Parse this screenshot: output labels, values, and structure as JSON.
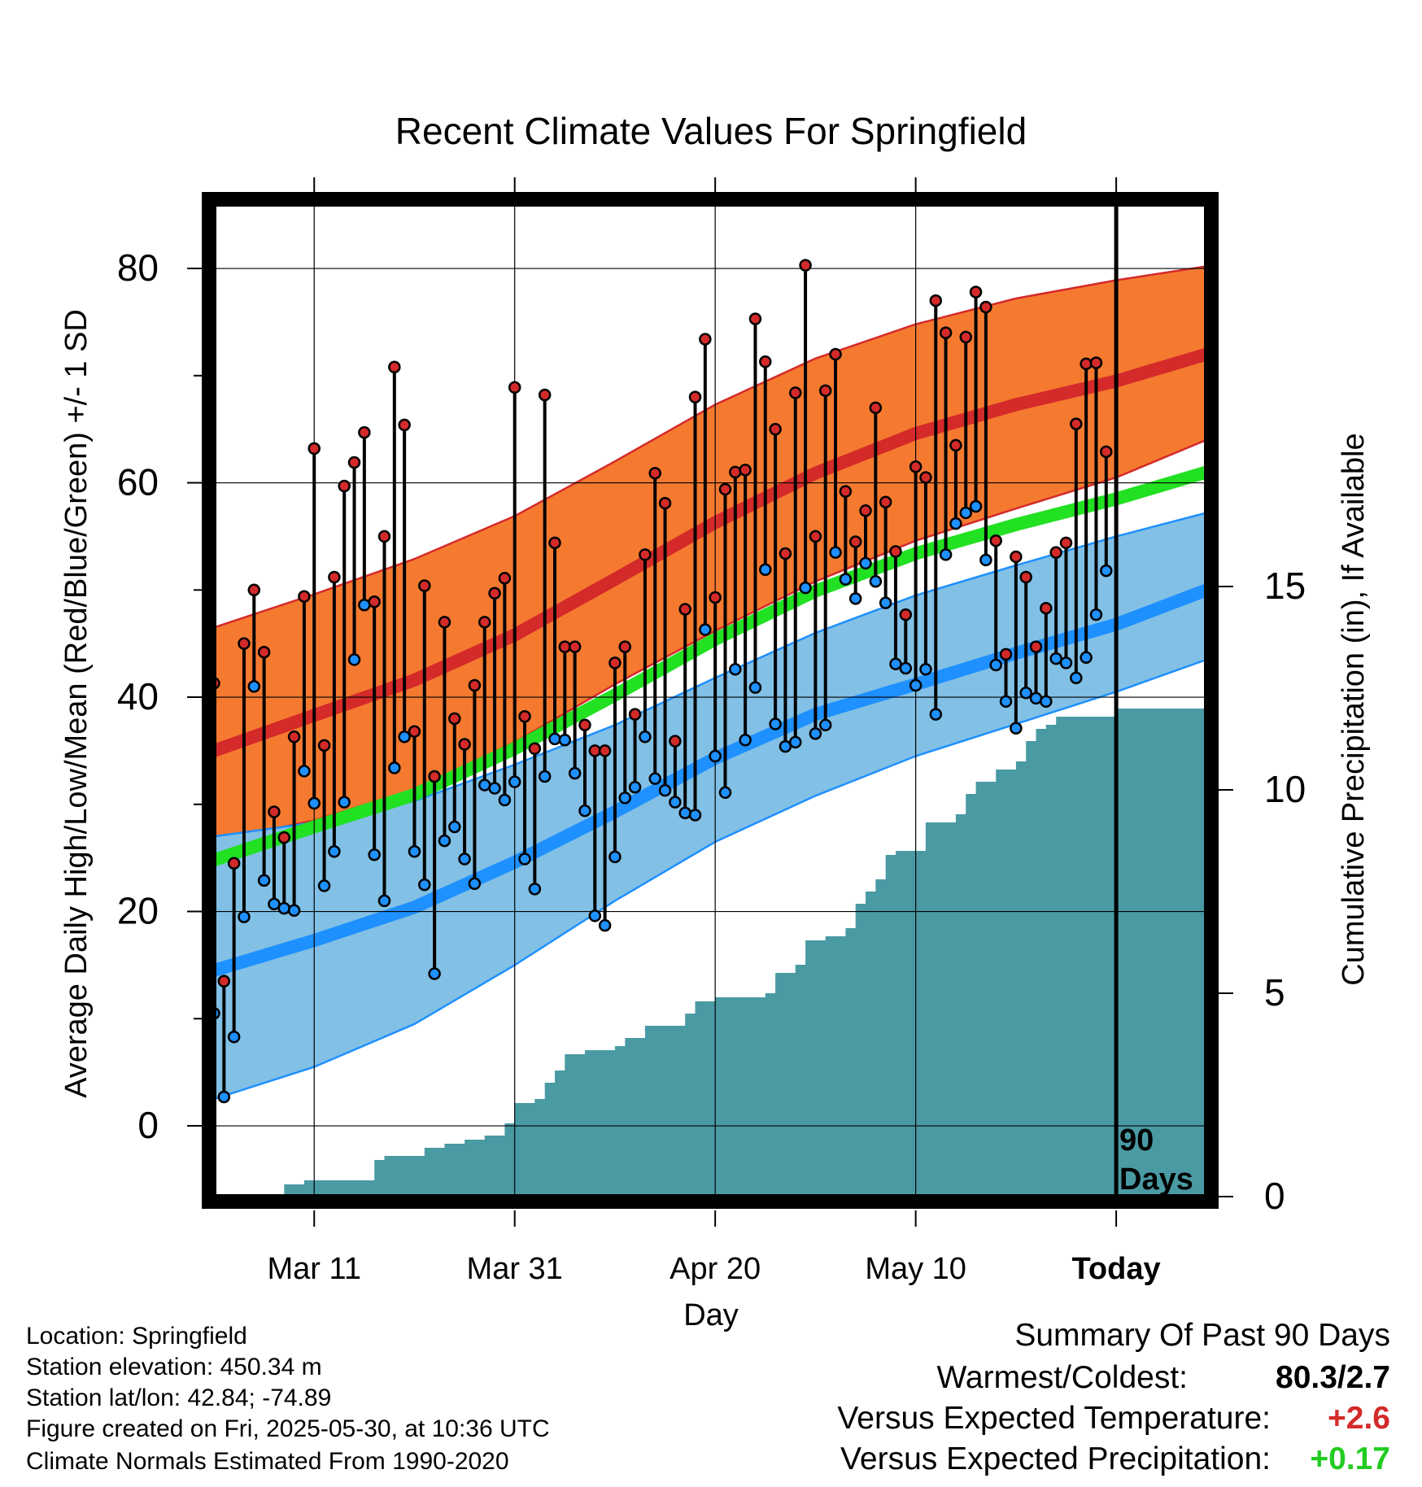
{
  "chart_data": {
    "type": "line",
    "title": "Recent Climate Values For Springfield",
    "xlabel": "Day",
    "ylabel": "Average Daily High/Low/Mean (Red/Blue/Green) +/- 1 SD",
    "ylabel_right": "Cumulative Precipitation (in), If Available",
    "x_range_days": [
      -90,
      9
    ],
    "ylim": [
      -6.6,
      86
    ],
    "y_ticks": [
      0,
      20,
      40,
      60,
      80
    ],
    "right_axis": {
      "ylim": [
        0,
        12.2
      ],
      "ticks": [
        0,
        5,
        10,
        15
      ],
      "tick_labels": [
        "0",
        "5",
        "10",
        "15"
      ]
    },
    "x_ticks": [
      {
        "day": -80,
        "label": "Mar 11"
      },
      {
        "day": -60,
        "label": "Mar 31"
      },
      {
        "day": -40,
        "label": "Apr 20"
      },
      {
        "day": -20,
        "label": "May 10"
      },
      {
        "day": 0,
        "label": "Today"
      }
    ],
    "today_marker": {
      "day": 0,
      "label_line1": "90",
      "label_line2": "Days"
    },
    "colors": {
      "high_band": "#f57a30",
      "high_mean": "#d42a2a",
      "low_band": "#82c0e6",
      "low_mean": "#1e90ff",
      "mean_line": "#22e022",
      "precip": "#4a9aa4"
    },
    "normals": {
      "days": [
        -90,
        -80,
        -70,
        -60,
        -50,
        -40,
        -30,
        -20,
        -10,
        0,
        9
      ],
      "high_mean": [
        35,
        38.3,
        41.6,
        45.8,
        51,
        56.3,
        60.9,
        64.6,
        67.3,
        69.5,
        72
      ],
      "high_sd_upper": [
        46.5,
        49.6,
        52.9,
        56.9,
        62,
        67.3,
        71.6,
        74.8,
        77.2,
        78.9,
        80.2
      ],
      "high_sd_lower": [
        26.6,
        28.5,
        31.4,
        35.8,
        41.2,
        46.2,
        50.8,
        54.6,
        57.6,
        60.5,
        64
      ],
      "low_mean": [
        14.5,
        17.3,
        20.4,
        24.6,
        29.3,
        34.3,
        38.4,
        41.2,
        44.1,
        46.8,
        50
      ],
      "low_sd_upper": [
        27,
        28.3,
        30.3,
        33.7,
        37.4,
        41.8,
        46,
        49.5,
        52.3,
        55,
        57.2
      ],
      "low_sd_lower": [
        2.5,
        5.5,
        9.5,
        15,
        21,
        26.5,
        30.8,
        34.5,
        37.5,
        40.5,
        43.5
      ],
      "mean": [
        24.8,
        27.9,
        30.9,
        35.2,
        40.2,
        45.4,
        49.9,
        53.4,
        56.1,
        58.5,
        61
      ]
    },
    "series": [
      {
        "name": "High",
        "values": [
          41.3,
          13.5,
          24.5,
          45,
          50,
          44.2,
          29.3,
          26.9,
          36.3,
          49.4,
          63.2,
          35.5,
          51.2,
          59.7,
          61.9,
          64.7,
          48.9,
          55,
          70.8,
          65.4,
          36.8,
          50.4,
          32.6,
          47,
          38,
          35.6,
          41.1,
          47,
          49.7,
          51.1,
          68.9,
          38.2,
          35.2,
          68.2,
          54.4,
          44.7,
          44.7,
          37.4,
          35,
          35,
          43.2,
          44.7,
          38.4,
          53.3,
          60.9,
          58.1,
          35.9,
          48.2,
          68,
          73.4,
          49.3,
          59.4,
          61,
          61.2,
          75.3,
          71.3,
          65,
          53.4,
          68.4,
          80.3,
          55,
          68.6,
          72,
          59.2,
          54.5,
          57.4,
          67,
          58.2,
          53.6,
          47.7,
          61.5,
          60.5,
          77,
          74,
          63.5,
          73.6,
          77.8,
          76.4,
          54.6,
          44,
          53.1,
          51.2,
          44.7,
          48.3,
          53.5,
          54.4,
          65.5,
          71.1,
          71.2,
          62.9
        ]
      },
      {
        "name": "Low",
        "values": [
          10.5,
          2.7,
          8.3,
          19.5,
          41,
          22.9,
          20.7,
          20.3,
          20.1,
          33.1,
          30.1,
          22.4,
          25.6,
          30.2,
          43.5,
          48.6,
          25.3,
          21,
          33.4,
          36.3,
          25.6,
          22.5,
          14.2,
          26.6,
          27.9,
          24.9,
          22.6,
          31.8,
          31.5,
          30.4,
          32.1,
          24.9,
          22.1,
          32.6,
          36.1,
          36,
          32.9,
          29.4,
          19.6,
          18.7,
          25.1,
          30.6,
          31.6,
          36.3,
          32.4,
          31.3,
          30.2,
          29.2,
          29,
          46.3,
          34.5,
          31.1,
          42.6,
          36,
          40.9,
          51.9,
          37.5,
          35.4,
          35.8,
          50.2,
          36.6,
          37.4,
          53.5,
          51,
          49.2,
          52.5,
          50.8,
          48.8,
          43.1,
          42.7,
          41.1,
          42.6,
          38.4,
          53.3,
          56.2,
          57.2,
          57.8,
          52.8,
          43,
          39.6,
          37.1,
          40.4,
          39.9,
          39.6,
          43.6,
          43.2,
          41.8,
          43.7,
          47.7,
          51.8
        ]
      },
      {
        "name": "Cumulative Precipitation",
        "x": [
          -90,
          -85,
          -83,
          -81,
          -79,
          -77,
          -75,
          -74,
          -73,
          -71,
          -69,
          -67,
          -65,
          -63,
          -61,
          -60,
          -58,
          -57,
          -56,
          -55,
          -53,
          -50,
          -49,
          -47,
          -45,
          -43,
          -42,
          -40,
          -37,
          -35,
          -34,
          -32,
          -31,
          -29,
          -27,
          -26,
          -25,
          -24,
          -23,
          -22,
          -19,
          -17,
          -16,
          -15,
          -14,
          -12,
          -10,
          -9,
          -8,
          -7,
          -6,
          0,
          9
        ],
        "values": [
          0,
          0,
          0.3,
          0.4,
          0.4,
          0.4,
          0.4,
          0.9,
          1.0,
          1.0,
          1.2,
          1.3,
          1.4,
          1.5,
          1.8,
          2.3,
          2.4,
          2.8,
          3.1,
          3.5,
          3.6,
          3.7,
          3.9,
          4.2,
          4.2,
          4.5,
          4.8,
          4.9,
          4.9,
          5.0,
          5.5,
          5.7,
          6.3,
          6.4,
          6.6,
          7.2,
          7.5,
          7.8,
          8.4,
          8.5,
          9.2,
          9.2,
          9.4,
          9.9,
          10.2,
          10.5,
          10.7,
          11.2,
          11.5,
          11.6,
          11.8,
          12.0,
          12.0
        ]
      }
    ]
  },
  "footer": {
    "location": "Location: Springfield",
    "elevation": "Station elevation: 450.34 m",
    "latlon": "Station lat/lon: 42.84; -74.89",
    "created": "Figure created on Fri, 2025-05-30, at 10:36 UTC",
    "normals": "Climate Normals Estimated From 1990-2020"
  },
  "summary": {
    "title": "Summary Of Past 90 Days",
    "warmest_coldest_label": "Warmest/Coldest:",
    "warmest_coldest_value": "80.3/2.7",
    "temp_label": "Versus Expected Temperature:",
    "temp_value": "+2.6",
    "temp_color": "#d42a2a",
    "precip_label": "Versus Expected Precipitation:",
    "precip_value": "+0.17",
    "precip_color": "#22cc22"
  }
}
